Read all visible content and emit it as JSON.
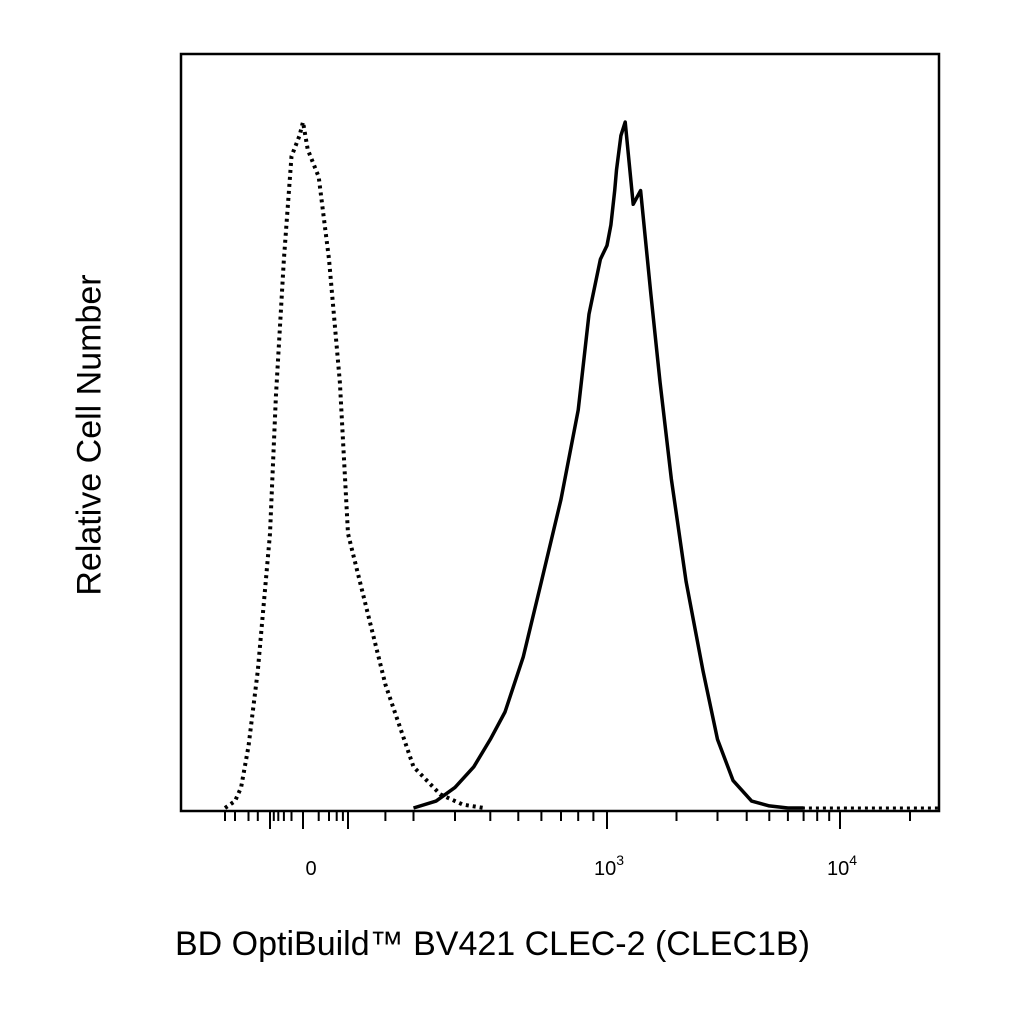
{
  "chart_data": {
    "type": "area",
    "ylabel": "Relative Cell Number",
    "xlabel": "BD OptiBuild™ BV421 CLEC-2 (CLEC1B)",
    "x_scale": "biexponential",
    "x_tick_labels": [
      {
        "value": 0,
        "base": "0",
        "exp": ""
      },
      {
        "value": 1000,
        "base": "10",
        "exp": "3"
      },
      {
        "value": 10000,
        "base": "10",
        "exp": "4"
      }
    ],
    "y_axis_ticks": false,
    "series": [
      {
        "style": "dotted",
        "color": "#000000",
        "x": [
          -400,
          -300,
          -250,
          -200,
          -150,
          -100,
          -70,
          -40,
          -20,
          -5,
          0,
          5,
          20,
          40,
          70,
          100,
          150,
          200,
          260,
          320,
          380
        ],
        "y": [
          0,
          1,
          3,
          9,
          20,
          40,
          60,
          80,
          95,
          98,
          100,
          96,
          92,
          80,
          62,
          40,
          18,
          6,
          2,
          0.5,
          0
        ]
      },
      {
        "style": "solid",
        "color": "#000000",
        "x": [
          200,
          250,
          300,
          350,
          400,
          450,
          520,
          600,
          700,
          800,
          870,
          950,
          1000,
          1040,
          1080,
          1100,
          1150,
          1200,
          1250,
          1300,
          1400,
          1550,
          1700,
          1900,
          2200,
          2600,
          3000,
          3500,
          4200,
          5000,
          6000,
          7000
        ],
        "y": [
          0,
          1,
          3,
          6,
          10,
          14,
          22,
          33,
          45,
          58,
          72,
          80,
          82,
          85,
          90,
          93,
          98,
          100,
          94,
          88,
          90,
          75,
          62,
          48,
          33,
          20,
          10,
          4,
          1,
          0.3,
          0,
          0
        ]
      }
    ]
  }
}
